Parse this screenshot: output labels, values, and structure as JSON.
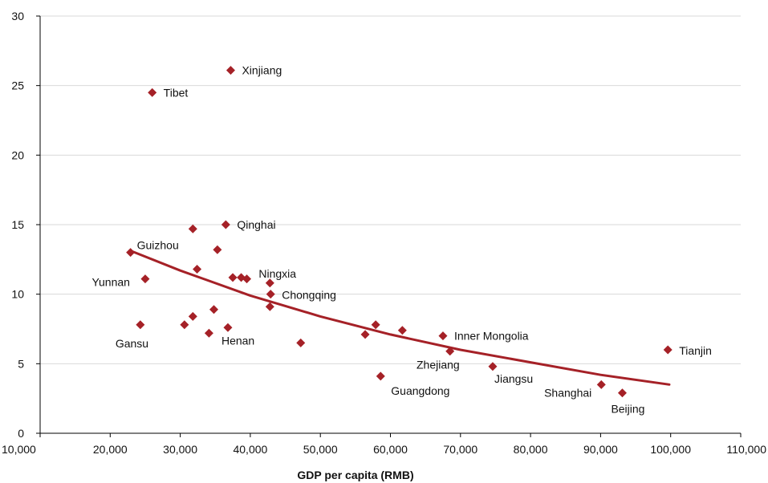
{
  "chart_data": {
    "type": "scatter",
    "title": "",
    "xlabel": "GDP per capita (RMB)",
    "ylabel": "",
    "xlim": [
      10000,
      110000
    ],
    "ylim": [
      0,
      30
    ],
    "x_ticks": [
      10000,
      20000,
      30000,
      40000,
      50000,
      60000,
      70000,
      80000,
      90000,
      100000,
      110000
    ],
    "x_tick_labels": [
      "10,000",
      "20,000",
      "30,000",
      "40,000",
      "50,000",
      "60,000",
      "70,000",
      "80,000",
      "90,000",
      "100,000",
      "110,000"
    ],
    "y_ticks": [
      0,
      5,
      10,
      15,
      20,
      25,
      30
    ],
    "y_tick_labels": [
      "0",
      "5",
      "10",
      "15",
      "20",
      "25",
      "30"
    ],
    "grid": "horizontal",
    "legend": "none",
    "marker_color": "#a52127",
    "trend_color": "#a52127",
    "points": [
      {
        "label": "Xinjiang",
        "x": 37200,
        "y": 26.1
      },
      {
        "label": "Tibet",
        "x": 26000,
        "y": 24.5
      },
      {
        "label": "Qinghai",
        "x": 36500,
        "y": 15.0
      },
      {
        "label": "",
        "x": 31800,
        "y": 14.7
      },
      {
        "label": "",
        "x": 35300,
        "y": 13.2
      },
      {
        "label": "Guizhou",
        "x": 22900,
        "y": 13.0
      },
      {
        "label": "",
        "x": 32400,
        "y": 11.8
      },
      {
        "label": "",
        "x": 37500,
        "y": 11.2
      },
      {
        "label": "",
        "x": 38700,
        "y": 11.2
      },
      {
        "label": "",
        "x": 39500,
        "y": 11.1
      },
      {
        "label": "Yunnan",
        "x": 25000,
        "y": 11.1
      },
      {
        "label": "Ningxia",
        "x": 42800,
        "y": 10.8
      },
      {
        "label": "Chongqing",
        "x": 42900,
        "y": 10.0
      },
      {
        "label": "",
        "x": 42800,
        "y": 9.1
      },
      {
        "label": "",
        "x": 34800,
        "y": 8.9
      },
      {
        "label": "",
        "x": 31800,
        "y": 8.4
      },
      {
        "label": "",
        "x": 30600,
        "y": 7.8
      },
      {
        "label": "Gansu",
        "x": 24300,
        "y": 7.8
      },
      {
        "label": "Henan",
        "x": 36800,
        "y": 7.6
      },
      {
        "label": "",
        "x": 34100,
        "y": 7.2
      },
      {
        "label": "",
        "x": 57900,
        "y": 7.8
      },
      {
        "label": "",
        "x": 61700,
        "y": 7.4
      },
      {
        "label": "",
        "x": 56400,
        "y": 7.1
      },
      {
        "label": "Inner Mongolia",
        "x": 67500,
        "y": 7.0
      },
      {
        "label": "",
        "x": 47200,
        "y": 6.5
      },
      {
        "label": "Tianjin",
        "x": 99600,
        "y": 6.0
      },
      {
        "label": "Zhejiang",
        "x": 68500,
        "y": 5.9
      },
      {
        "label": "Jiangsu",
        "x": 74600,
        "y": 4.8
      },
      {
        "label": "Guangdong",
        "x": 58600,
        "y": 4.1
      },
      {
        "label": "Shanghai",
        "x": 90100,
        "y": 3.5
      },
      {
        "label": "Beijing",
        "x": 93100,
        "y": 2.9
      }
    ],
    "trendline": {
      "type": "exponential",
      "x": [
        23000,
        30000,
        40000,
        50000,
        60000,
        70000,
        80000,
        90000,
        99800
      ],
      "y": [
        13.1,
        11.7,
        9.9,
        8.4,
        7.1,
        6.0,
        5.1,
        4.2,
        3.5
      ]
    }
  }
}
